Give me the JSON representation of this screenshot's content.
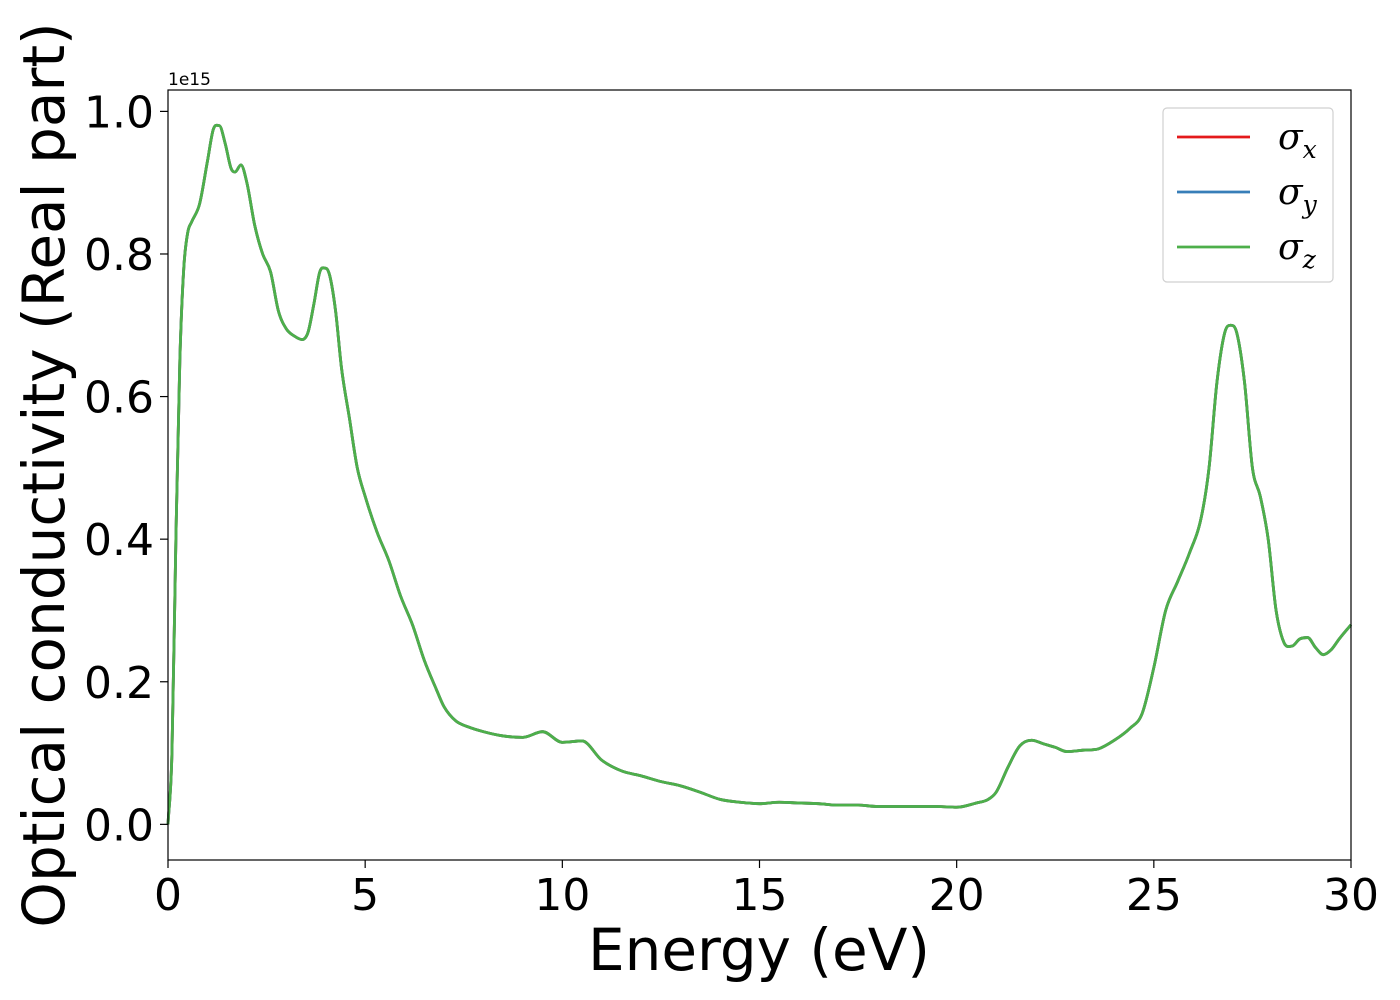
{
  "chart_data": {
    "type": "line",
    "title": "",
    "xlabel": "Energy (eV)",
    "ylabel": "Optical conductivity (Real part)",
    "y_offset_label": "1e15",
    "xlim": [
      0,
      30
    ],
    "ylim": [
      -0.05,
      1.03
    ],
    "x_ticks": [
      0,
      5,
      10,
      15,
      20,
      25,
      30
    ],
    "x_tick_labels": [
      "0",
      "5",
      "10",
      "15",
      "20",
      "25",
      "30"
    ],
    "y_ticks": [
      0.0,
      0.2,
      0.4,
      0.6,
      0.8,
      1.0
    ],
    "y_tick_labels": [
      "0.0",
      "0.2",
      "0.4",
      "0.6",
      "0.8",
      "1.0"
    ],
    "grid": false,
    "legend_position": "top-right",
    "series": [
      {
        "name": "σx",
        "symbol": "σ",
        "subscript": "x",
        "color": "#e41a1c",
        "x": [
          0,
          0.1,
          0.2,
          0.3,
          0.4,
          0.5,
          0.6,
          0.8,
          1.0,
          1.15,
          1.3,
          1.45,
          1.6,
          1.7,
          1.85,
          2.0,
          2.2,
          2.4,
          2.6,
          2.8,
          3.0,
          3.2,
          3.4,
          3.55,
          3.7,
          3.85,
          4.0,
          4.1,
          4.25,
          4.4,
          4.6,
          4.8,
          5.0,
          5.3,
          5.6,
          5.9,
          6.2,
          6.5,
          6.8,
          7.0,
          7.3,
          7.6,
          8.0,
          8.5,
          9.0,
          9.5,
          10.0,
          10.5,
          11.0,
          11.5,
          12.0,
          12.5,
          13.0,
          13.5,
          14.0,
          14.5,
          15.0,
          15.5,
          16.0,
          16.5,
          17.0,
          17.5,
          18.0,
          18.5,
          19.0,
          19.5,
          20.0,
          20.5,
          20.8,
          21.0,
          21.3,
          21.6,
          21.9,
          22.2,
          22.5,
          22.8,
          23.2,
          23.6,
          24.0,
          24.4,
          24.7,
          25.0,
          25.3,
          25.6,
          25.9,
          26.2,
          26.4,
          26.6,
          26.8,
          26.95,
          27.1,
          27.3,
          27.5,
          27.7,
          27.9,
          28.1,
          28.3,
          28.5,
          28.7,
          28.9,
          29.1,
          29.3,
          29.5,
          29.7,
          30.0
        ],
        "y": [
          0.0,
          0.1,
          0.4,
          0.65,
          0.78,
          0.83,
          0.845,
          0.87,
          0.93,
          0.975,
          0.98,
          0.955,
          0.92,
          0.915,
          0.925,
          0.9,
          0.84,
          0.8,
          0.775,
          0.72,
          0.695,
          0.685,
          0.68,
          0.69,
          0.73,
          0.775,
          0.78,
          0.77,
          0.72,
          0.64,
          0.57,
          0.5,
          0.46,
          0.41,
          0.37,
          0.32,
          0.28,
          0.23,
          0.19,
          0.165,
          0.145,
          0.137,
          0.13,
          0.124,
          0.122,
          0.13,
          0.115,
          0.117,
          0.09,
          0.075,
          0.068,
          0.06,
          0.054,
          0.045,
          0.035,
          0.031,
          0.029,
          0.031,
          0.03,
          0.029,
          0.027,
          0.027,
          0.025,
          0.025,
          0.025,
          0.025,
          0.024,
          0.03,
          0.035,
          0.045,
          0.08,
          0.11,
          0.118,
          0.113,
          0.108,
          0.102,
          0.104,
          0.106,
          0.118,
          0.135,
          0.155,
          0.22,
          0.3,
          0.34,
          0.38,
          0.43,
          0.5,
          0.62,
          0.69,
          0.7,
          0.69,
          0.62,
          0.5,
          0.46,
          0.4,
          0.3,
          0.255,
          0.25,
          0.26,
          0.262,
          0.248,
          0.238,
          0.245,
          0.26,
          0.28
        ]
      },
      {
        "name": "σy",
        "symbol": "σ",
        "subscript": "y",
        "color": "#377eb8",
        "x": [
          0,
          0.1,
          0.2,
          0.3,
          0.4,
          0.5,
          0.6,
          0.8,
          1.0,
          1.15,
          1.3,
          1.45,
          1.6,
          1.7,
          1.85,
          2.0,
          2.2,
          2.4,
          2.6,
          2.8,
          3.0,
          3.2,
          3.4,
          3.55,
          3.7,
          3.85,
          4.0,
          4.1,
          4.25,
          4.4,
          4.6,
          4.8,
          5.0,
          5.3,
          5.6,
          5.9,
          6.2,
          6.5,
          6.8,
          7.0,
          7.3,
          7.6,
          8.0,
          8.5,
          9.0,
          9.5,
          10.0,
          10.5,
          11.0,
          11.5,
          12.0,
          12.5,
          13.0,
          13.5,
          14.0,
          14.5,
          15.0,
          15.5,
          16.0,
          16.5,
          17.0,
          17.5,
          18.0,
          18.5,
          19.0,
          19.5,
          20.0,
          20.5,
          20.8,
          21.0,
          21.3,
          21.6,
          21.9,
          22.2,
          22.5,
          22.8,
          23.2,
          23.6,
          24.0,
          24.4,
          24.7,
          25.0,
          25.3,
          25.6,
          25.9,
          26.2,
          26.4,
          26.6,
          26.8,
          26.95,
          27.1,
          27.3,
          27.5,
          27.7,
          27.9,
          28.1,
          28.3,
          28.5,
          28.7,
          28.9,
          29.1,
          29.3,
          29.5,
          29.7,
          30.0
        ],
        "y": [
          0.0,
          0.1,
          0.4,
          0.65,
          0.78,
          0.83,
          0.845,
          0.87,
          0.93,
          0.975,
          0.98,
          0.955,
          0.92,
          0.915,
          0.925,
          0.9,
          0.84,
          0.8,
          0.775,
          0.72,
          0.695,
          0.685,
          0.68,
          0.69,
          0.73,
          0.775,
          0.78,
          0.77,
          0.72,
          0.64,
          0.57,
          0.5,
          0.46,
          0.41,
          0.37,
          0.32,
          0.28,
          0.23,
          0.19,
          0.165,
          0.145,
          0.137,
          0.13,
          0.124,
          0.122,
          0.13,
          0.115,
          0.117,
          0.09,
          0.075,
          0.068,
          0.06,
          0.054,
          0.045,
          0.035,
          0.031,
          0.029,
          0.031,
          0.03,
          0.029,
          0.027,
          0.027,
          0.025,
          0.025,
          0.025,
          0.025,
          0.024,
          0.03,
          0.035,
          0.045,
          0.08,
          0.11,
          0.118,
          0.113,
          0.108,
          0.102,
          0.104,
          0.106,
          0.118,
          0.135,
          0.155,
          0.22,
          0.3,
          0.34,
          0.38,
          0.43,
          0.5,
          0.62,
          0.69,
          0.7,
          0.69,
          0.62,
          0.5,
          0.46,
          0.4,
          0.3,
          0.255,
          0.25,
          0.26,
          0.262,
          0.248,
          0.238,
          0.245,
          0.26,
          0.28
        ]
      },
      {
        "name": "σz",
        "symbol": "σ",
        "subscript": "z",
        "color": "#4daf4a",
        "x": [
          0,
          0.1,
          0.2,
          0.3,
          0.4,
          0.5,
          0.6,
          0.8,
          1.0,
          1.15,
          1.3,
          1.45,
          1.6,
          1.7,
          1.85,
          2.0,
          2.2,
          2.4,
          2.6,
          2.8,
          3.0,
          3.2,
          3.4,
          3.55,
          3.7,
          3.85,
          4.0,
          4.1,
          4.25,
          4.4,
          4.6,
          4.8,
          5.0,
          5.3,
          5.6,
          5.9,
          6.2,
          6.5,
          6.8,
          7.0,
          7.3,
          7.6,
          8.0,
          8.5,
          9.0,
          9.5,
          10.0,
          10.5,
          11.0,
          11.5,
          12.0,
          12.5,
          13.0,
          13.5,
          14.0,
          14.5,
          15.0,
          15.5,
          16.0,
          16.5,
          17.0,
          17.5,
          18.0,
          18.5,
          19.0,
          19.5,
          20.0,
          20.5,
          20.8,
          21.0,
          21.3,
          21.6,
          21.9,
          22.2,
          22.5,
          22.8,
          23.2,
          23.6,
          24.0,
          24.4,
          24.7,
          25.0,
          25.3,
          25.6,
          25.9,
          26.2,
          26.4,
          26.6,
          26.8,
          26.95,
          27.1,
          27.3,
          27.5,
          27.7,
          27.9,
          28.1,
          28.3,
          28.5,
          28.7,
          28.9,
          29.1,
          29.3,
          29.5,
          29.7,
          30.0
        ],
        "y": [
          0.0,
          0.1,
          0.4,
          0.65,
          0.78,
          0.83,
          0.845,
          0.87,
          0.93,
          0.975,
          0.98,
          0.955,
          0.92,
          0.915,
          0.925,
          0.9,
          0.84,
          0.8,
          0.775,
          0.72,
          0.695,
          0.685,
          0.68,
          0.69,
          0.73,
          0.775,
          0.78,
          0.77,
          0.72,
          0.64,
          0.57,
          0.5,
          0.46,
          0.41,
          0.37,
          0.32,
          0.28,
          0.23,
          0.19,
          0.165,
          0.145,
          0.137,
          0.13,
          0.124,
          0.122,
          0.13,
          0.115,
          0.117,
          0.09,
          0.075,
          0.068,
          0.06,
          0.054,
          0.045,
          0.035,
          0.031,
          0.029,
          0.031,
          0.03,
          0.029,
          0.027,
          0.027,
          0.025,
          0.025,
          0.025,
          0.025,
          0.024,
          0.03,
          0.035,
          0.045,
          0.08,
          0.11,
          0.118,
          0.113,
          0.108,
          0.102,
          0.104,
          0.106,
          0.118,
          0.135,
          0.155,
          0.22,
          0.3,
          0.34,
          0.38,
          0.43,
          0.5,
          0.62,
          0.69,
          0.7,
          0.69,
          0.62,
          0.5,
          0.46,
          0.4,
          0.3,
          0.255,
          0.25,
          0.26,
          0.262,
          0.248,
          0.238,
          0.245,
          0.26,
          0.28
        ]
      }
    ]
  }
}
